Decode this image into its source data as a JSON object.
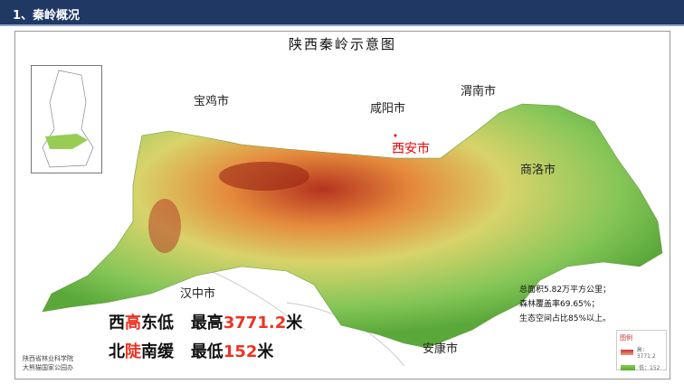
{
  "header": {
    "title": "1、秦岭概况"
  },
  "map": {
    "title": "陕西秦岭示意图",
    "cities": [
      "宝鸡市",
      "咸阳市",
      "渭南市",
      "西安市",
      "商洛市",
      "汉中市",
      "安康市"
    ],
    "capital_color": "#e00000"
  },
  "highlights": {
    "line1": [
      "西",
      "高",
      "东低"
    ],
    "line1b": [
      "最高",
      "3771.2",
      "米"
    ],
    "line2": [
      "北",
      "陡",
      "南缓"
    ],
    "line2b": [
      "最低",
      "152",
      "米"
    ]
  },
  "stats": [
    "总面积5.82万平方公里；",
    "森林覆盖率69.65%；",
    "生态空间占比85%以上。"
  ],
  "legend": {
    "title": "图例",
    "high": "高：3771.2",
    "low": "低：152",
    "high_color": "#d9452b",
    "low_color": "#6fbf3f"
  },
  "credit": [
    "陕西省林业科学院",
    "大熊猫国家公园办"
  ]
}
